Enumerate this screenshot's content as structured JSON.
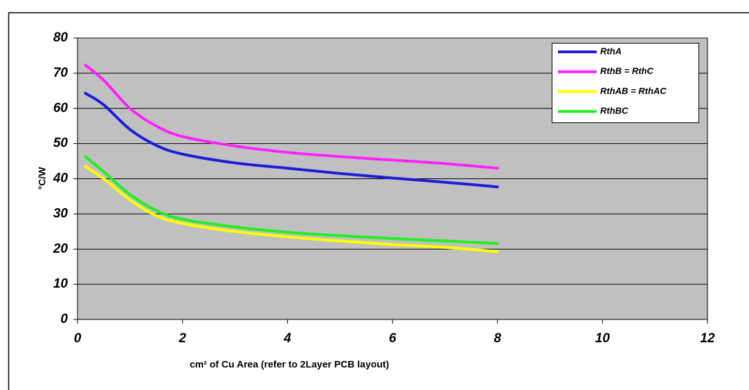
{
  "chart_data": {
    "type": "line",
    "ylabel": "°C/W",
    "xlabel": "cm² of Cu Area (refer to 2Layer PCB layout)",
    "xlim": [
      0,
      12
    ],
    "xticks": [
      0,
      2,
      4,
      6,
      8,
      10,
      12
    ],
    "ylim": [
      0,
      80
    ],
    "yticks": [
      0,
      10,
      20,
      30,
      40,
      50,
      60,
      70,
      80
    ],
    "grid": true,
    "legend": "upper right",
    "x": [
      0.15,
      0.5,
      1,
      1.5,
      2,
      3,
      4,
      5,
      6,
      7,
      8
    ],
    "series": [
      {
        "name": "RthA",
        "color": "#1c1cd8",
        "values": [
          64.3,
          61,
          54,
          49.5,
          47,
          44.5,
          43,
          41.5,
          40.2,
          39,
          37.7
        ]
      },
      {
        "name": "RthB = RthC",
        "color": "#ff22ff",
        "values": [
          72.3,
          68,
          60,
          55,
          52,
          49.3,
          47.5,
          46.3,
          45.3,
          44.3,
          43
        ]
      },
      {
        "name": "RthAB = RthAC",
        "color": "#ffff00",
        "values": [
          43.5,
          40,
          34,
          29.5,
          27.3,
          25,
          23.5,
          22.3,
          21.3,
          20.5,
          19.3
        ]
      },
      {
        "name": "RthBC",
        "color": "#22ee22",
        "values": [
          46.3,
          42,
          35.5,
          31,
          28.5,
          26.3,
          24.8,
          23.8,
          23,
          22.3,
          21.6
        ]
      }
    ]
  }
}
